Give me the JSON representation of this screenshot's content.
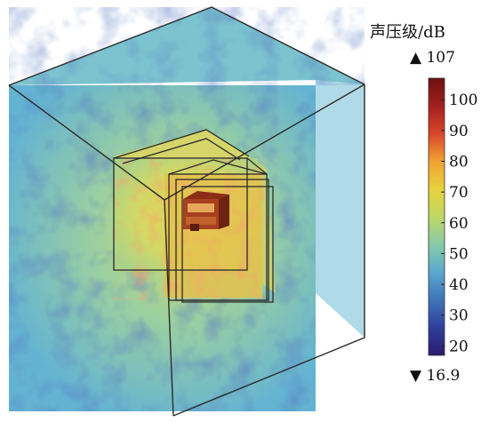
{
  "legend": {
    "title": "声压级/dB",
    "max_label": "▲  107",
    "min_label": "▼ 16.9",
    "max_value": 107,
    "min_value": 16.9,
    "ticks": [
      {
        "label": "100",
        "value": 100
      },
      {
        "label": "90",
        "value": 90
      },
      {
        "label": "80",
        "value": 80
      },
      {
        "label": "70",
        "value": 70
      },
      {
        "label": "60",
        "value": 60
      },
      {
        "label": "50",
        "value": 50
      },
      {
        "label": "40",
        "value": 40
      },
      {
        "label": "30",
        "value": 30
      },
      {
        "label": "20",
        "value": 20
      }
    ],
    "colormap": [
      "#2b1a6e",
      "#2f3f9c",
      "#3f74b8",
      "#5aa8cf",
      "#88cba8",
      "#bfd766",
      "#e8d23c",
      "#f1a233",
      "#d8452a",
      "#a41f1f",
      "#6e1010"
    ]
  }
}
